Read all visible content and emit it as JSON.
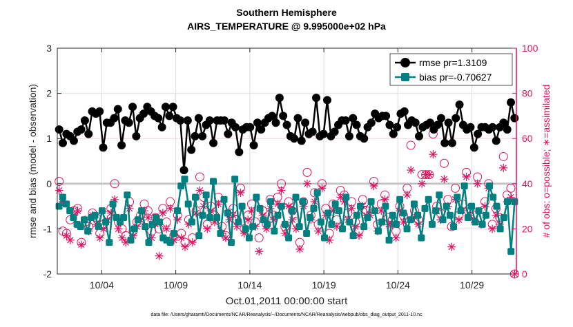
{
  "chart_data": {
    "type": "line",
    "title": [
      "Southern Hemisphere",
      "AIRS_TEMPERATURE @ 9.995000e+02 hPa"
    ],
    "xlabel": "Oct.01,2011 00:00:00 start",
    "ylabel": "rmse and bias (model - observation)",
    "y2label": "# of obs: o=possible; ∗=assimilated",
    "footnote": "data file: /Users/gharamti/Documents/NCAR/Reanalysis/~/Documents/NCAR/Reanalysis/webpub/obs_diag_output_2011-10.nc",
    "xlim_days": [
      0,
      31
    ],
    "ylim": [
      -2,
      3
    ],
    "y2lim": [
      0,
      100
    ],
    "grid": true,
    "legend_placement": "top-right",
    "x_ticks": [
      {
        "day": 3,
        "label": "10/04"
      },
      {
        "day": 8,
        "label": "10/09"
      },
      {
        "day": 13,
        "label": "10/14"
      },
      {
        "day": 18,
        "label": "10/19"
      },
      {
        "day": 23,
        "label": "10/24"
      },
      {
        "day": 28,
        "label": "10/29"
      }
    ],
    "y_ticks": [
      "3",
      "2",
      "1",
      "0",
      "-1",
      "-2"
    ],
    "y2_ticks": [
      "0",
      "20",
      "40",
      "60",
      "80",
      "100"
    ],
    "colors": {
      "rmse": "#000000",
      "bias": "#008080",
      "obs": "#e0115f"
    },
    "series": [
      {
        "name": "rmse pr=1.3109",
        "values": [
          1.2,
          0.9,
          1.1,
          1.05,
          0.95,
          1.15,
          1.2,
          1.4,
          1.1,
          1.6,
          1.55,
          1.6,
          0.8,
          1.35,
          1.35,
          1.45,
          1.65,
          0.85,
          1.4,
          1.35,
          1.7,
          1.05,
          1.45,
          1.55,
          1.7,
          1.6,
          1.5,
          1.45,
          1.25,
          1.7,
          1.5,
          1.7,
          1.45,
          1.4,
          0.3,
          1.4,
          0.75,
          1.05,
          1.45,
          1.05,
          1.3,
          1.4,
          0.9,
          1.4,
          1.4,
          1.4,
          1.1,
          1.35,
          1.25,
          0.7,
          1.2,
          1.25,
          1.25,
          0.85,
          1.35,
          1.2,
          1.35,
          1.45,
          1.5,
          1.35,
          1.9,
          1.5,
          1.3,
          1.05,
          1.0,
          1.45,
          0.95,
          1.35,
          1.1,
          1.15,
          1.9,
          1.05,
          1.1,
          1.85,
          1.05,
          1.15,
          1.3,
          1.4,
          1.4,
          1.05,
          1.45,
          1.3,
          1.05,
          1.0,
          1.25,
          1.35,
          1.55,
          1.45,
          1.5,
          1.5,
          1.3,
          1.1,
          1.25,
          1.55,
          1.6,
          1.3,
          1.4,
          1.35,
          1.05,
          1.25,
          1.3,
          1.35,
          1.2,
          1.3,
          1.45,
          0.9,
          1.35,
          0.9,
          1.45,
          1.75,
          1.3,
          1.2,
          1.25,
          0.8,
          1.1,
          1.25,
          1.25,
          1.2,
          1.25,
          0.95,
          1.25,
          1.35,
          1.2,
          1.8,
          1.45
        ]
      },
      {
        "name": "bias pr=-0.70627",
        "values": [
          -0.5,
          -0.3,
          -0.45,
          -0.6,
          -0.75,
          -0.9,
          -0.95,
          -0.8,
          -1.05,
          -0.75,
          -0.7,
          -0.95,
          -0.6,
          -0.85,
          -1.3,
          -0.45,
          -0.75,
          -0.85,
          -0.75,
          -0.25,
          -1.25,
          -1.0,
          -0.8,
          -0.6,
          -0.95,
          -1.3,
          -0.9,
          -0.75,
          -0.85,
          -1.2,
          -1.25,
          -1.3,
          -1.1,
          -0.6,
          -0.05,
          0.1,
          -0.45,
          -0.85,
          -0.3,
          -1.15,
          -0.7,
          -0.25,
          -0.75,
          0.05,
          -0.75,
          -1.1,
          -0.35,
          -0.65,
          -1.3,
          0.1,
          -0.85,
          -0.5,
          -1.0,
          -1.2,
          -0.95,
          -0.3,
          -0.55,
          -0.8,
          -0.9,
          -0.4,
          -1.05,
          -0.7,
          -0.5,
          -0.9,
          -1.2,
          -0.6,
          -0.3,
          -0.95,
          -0.4,
          -1.1,
          -0.75,
          -0.55,
          -0.2,
          -0.85,
          -1.2,
          -0.65,
          -0.9,
          -0.45,
          -0.6,
          -1.0,
          -0.3,
          -0.85,
          -1.15,
          -0.7,
          -0.5,
          -0.95,
          -0.75,
          -0.4,
          -0.6,
          -1.05,
          -0.85,
          -0.5,
          -1.25,
          -0.7,
          -0.9,
          -0.35,
          -0.65,
          -1.0,
          -0.8,
          -0.45,
          -0.7,
          -1.2,
          -0.55,
          -0.35,
          -0.9,
          -0.6,
          -0.25,
          -0.8,
          -0.5,
          -0.7,
          -0.95,
          -0.3,
          -0.6,
          -0.05,
          -0.75,
          -0.5,
          -0.85,
          -0.6,
          -0.9,
          -0.7,
          -0.05,
          -0.3,
          -0.5,
          -1.0,
          -0.75,
          -0.4,
          -1.5,
          -0.4
        ]
      },
      {
        "name": "obs possible",
        "axis": "right",
        "values": [
          41,
          19,
          18,
          24,
          28,
          29,
          14,
          23,
          21,
          27,
          25,
          18,
          22,
          26,
          29,
          40,
          23,
          20,
          17,
          32,
          19,
          23,
          26,
          31,
          28,
          19,
          25,
          20,
          29,
          23,
          32,
          17,
          26,
          18,
          14,
          24,
          16,
          28,
          43,
          34,
          22,
          30,
          26,
          34,
          21,
          17,
          27,
          29,
          24,
          38,
          20,
          26,
          31,
          23,
          16,
          28,
          22,
          33,
          26,
          34,
          40,
          21,
          32,
          28,
          23,
          14,
          32,
          45,
          26,
          36,
          22,
          40,
          29,
          18,
          31,
          24,
          37,
          35,
          27,
          32,
          23,
          19,
          33,
          28,
          29,
          41,
          22,
          31,
          35,
          25,
          24,
          19,
          30,
          26,
          38,
          57,
          28,
          24,
          44,
          44,
          44,
          62,
          30,
          27,
          49,
          33,
          21,
          38,
          26,
          31,
          45,
          29,
          26,
          43,
          25,
          32,
          40,
          22,
          29,
          25,
          52,
          35,
          38,
          0
        ]
      },
      {
        "name": "obs assimilated",
        "axis": "right",
        "values": [
          37,
          32,
          17,
          15,
          26,
          28,
          13,
          24,
          19,
          26,
          22,
          16,
          20,
          24,
          27,
          33,
          20,
          16,
          14,
          29,
          17,
          21,
          24,
          28,
          25,
          16,
          22,
          8,
          27,
          20,
          29,
          15,
          24,
          16,
          12,
          22,
          14,
          27,
          37,
          30,
          20,
          28,
          23,
          31,
          18,
          16,
          24,
          26,
          21,
          36,
          18,
          24,
          28,
          21,
          10,
          26,
          20,
          29,
          24,
          31,
          37,
          18,
          30,
          24,
          20,
          11,
          30,
          40,
          24,
          32,
          19,
          38,
          26,
          15,
          28,
          21,
          34,
          32,
          24,
          29,
          21,
          17,
          30,
          26,
          26,
          39,
          19,
          28,
          33,
          22,
          22,
          16,
          28,
          23,
          35,
          46,
          25,
          22,
          40,
          44,
          44,
          53,
          28,
          24,
          42,
          30,
          12,
          33,
          24,
          28,
          43,
          26,
          24,
          40,
          22,
          30,
          38,
          20,
          26,
          22,
          47,
          32,
          34,
          0
        ]
      }
    ]
  }
}
